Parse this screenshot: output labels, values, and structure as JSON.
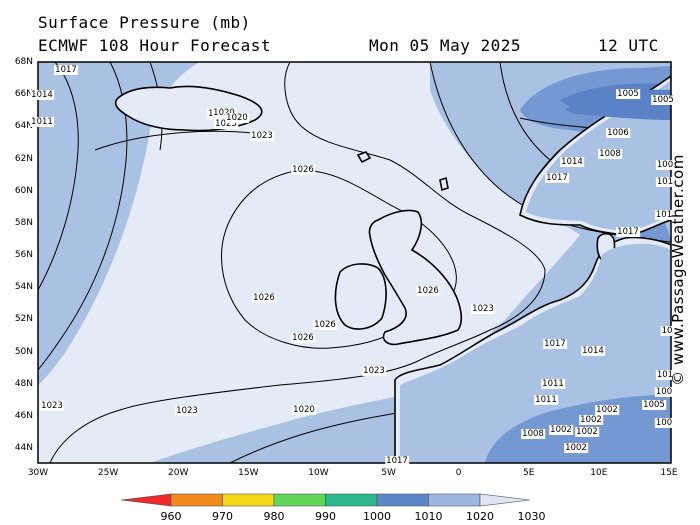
{
  "header": {
    "title": "Surface Pressure (mb)",
    "model": "ECMWF 108 Hour Forecast",
    "date": "Mon 05 May 2025",
    "time": "12 UTC"
  },
  "credit": "© www.PassageWeather.com",
  "map": {
    "lat_labels": [
      "68N",
      "66N",
      "64N",
      "62N",
      "60N",
      "58N",
      "56N",
      "54N",
      "52N",
      "50N",
      "48N",
      "46N",
      "44N"
    ],
    "lon_labels": [
      "30W",
      "25W",
      "20W",
      "15W",
      "10W",
      "5W",
      "0",
      "5E",
      "10E",
      "15E"
    ],
    "isobar_labels": [
      {
        "text": "1017"
      },
      {
        "text": "1014"
      },
      {
        "text": "1011"
      },
      {
        "text": "1020"
      },
      {
        "text": "1023"
      },
      {
        "text": "1026"
      },
      {
        "text": "1026"
      },
      {
        "text": "1026"
      },
      {
        "text": "1026"
      },
      {
        "text": "1026"
      },
      {
        "text": "1023"
      },
      {
        "text": "1023"
      },
      {
        "text": "1023"
      },
      {
        "text": "1023"
      },
      {
        "text": "1020"
      },
      {
        "text": "1017"
      },
      {
        "text": "1005"
      },
      {
        "text": "1005"
      },
      {
        "text": "1006"
      },
      {
        "text": "1008"
      },
      {
        "text": "1014"
      },
      {
        "text": "1017"
      },
      {
        "text": "1017"
      },
      {
        "text": "1014"
      },
      {
        "text": "1017"
      },
      {
        "text": "1011"
      },
      {
        "text": "1011"
      },
      {
        "text": "1008"
      },
      {
        "text": "1002"
      },
      {
        "text": "1002"
      },
      {
        "text": "1002"
      },
      {
        "text": "1002"
      },
      {
        "text": "1002"
      },
      {
        "text": "1005"
      },
      {
        "text": "1020"
      },
      {
        "text": "1023"
      },
      {
        "text": "1020"
      },
      {
        "text": "100"
      },
      {
        "text": "101"
      },
      {
        "text": "101"
      },
      {
        "text": "10"
      },
      {
        "text": "101"
      },
      {
        "text": "100"
      },
      {
        "text": "100"
      }
    ]
  },
  "legend": {
    "labels": [
      "960",
      "970",
      "980",
      "990",
      "1000",
      "1010",
      "1020",
      "1030"
    ],
    "colors": [
      "#ee2a2a",
      "#f08a1a",
      "#f4d81c",
      "#62d65a",
      "#2bb88a",
      "#5b86c8",
      "#9bb6df",
      "#dce6f4"
    ]
  },
  "colors": {
    "light_fill": "#e4ebf6",
    "mid_fill": "#a9c1e3",
    "dark_fill": "#7499d2",
    "darkest_fill": "#5a82c6",
    "land": "#000000"
  }
}
